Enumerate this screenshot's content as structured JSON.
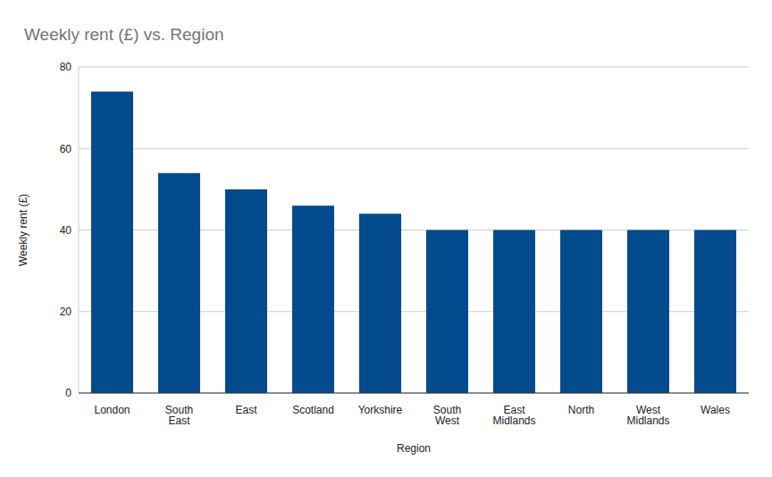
{
  "chart_data": {
    "type": "bar",
    "title": "Weekly rent (£) vs. Region",
    "x_label": "Region",
    "y_label": "Weekly rent (£)",
    "categories": [
      "London",
      "South East",
      "East",
      "Scotland",
      "Yorkshire",
      "South West",
      "East Midlands",
      "North",
      "West Midlands",
      "Wales"
    ],
    "values": [
      74,
      54,
      50,
      46,
      44,
      40,
      40,
      40,
      40,
      40
    ],
    "color": "#034b8c",
    "ylim": [
      0,
      80
    ],
    "yticks": [
      0,
      20,
      40,
      60,
      80
    ],
    "grid": true
  }
}
